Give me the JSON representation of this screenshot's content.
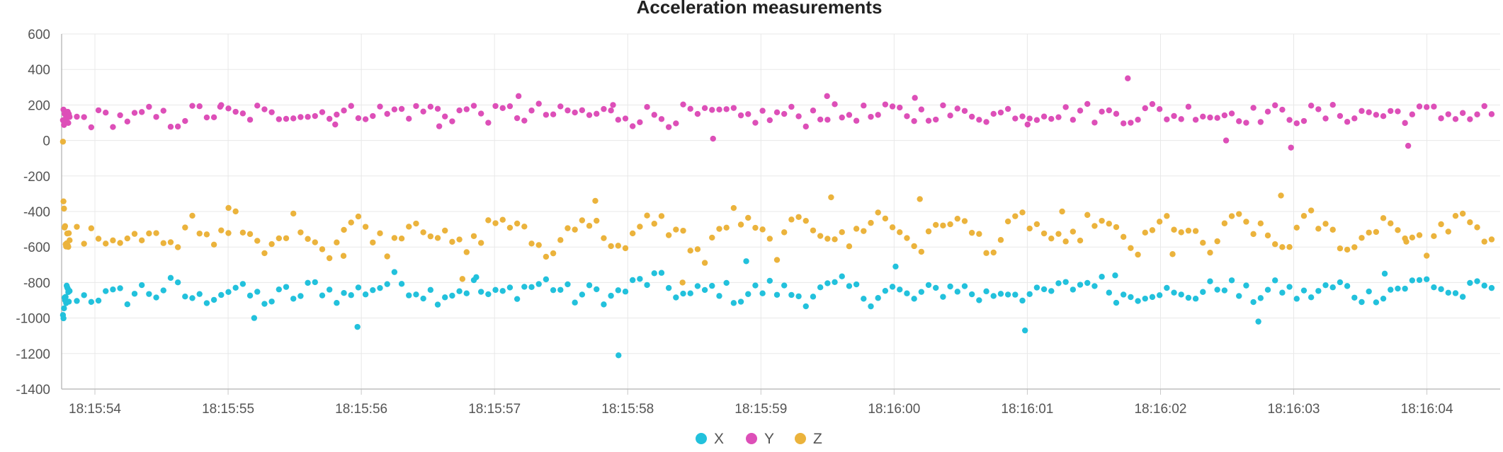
{
  "chart_data": {
    "type": "scatter",
    "title": "Acceleration measurements",
    "xlabel": "",
    "ylabel": "",
    "ylim": [
      -1400,
      600
    ],
    "y_ticks": [
      600,
      400,
      200,
      0,
      -200,
      -400,
      -600,
      -800,
      -1000,
      -1200,
      -1400
    ],
    "y_tick_labels": [
      "600",
      "400",
      "200",
      "0",
      "-200",
      "-400",
      "-600",
      "-800",
      "-1000",
      "-1200",
      "-1400"
    ],
    "xlim": [
      53.75,
      64.55
    ],
    "x_ticks": [
      54,
      55,
      56,
      57,
      58,
      59,
      60,
      61,
      62,
      63,
      64
    ],
    "x_tick_labels": [
      "18:15:54",
      "18:15:55",
      "18:15:56",
      "18:15:57",
      "18:15:58",
      "18:15:59",
      "18:16:00",
      "18:16:01",
      "18:16:02",
      "18:16:03",
      "18:16:04"
    ],
    "grid": true,
    "legend": "bottom-center",
    "series": [
      {
        "name": "X",
        "color": "#22c1dc",
        "base": [
          -1000,
          -980,
          -960,
          -940,
          -920,
          -900,
          -880,
          -860,
          -850,
          -870,
          -880,
          -890,
          -880,
          -870,
          -880,
          -880,
          -870,
          -880,
          -880,
          -870,
          -880,
          -860,
          -840,
          -850,
          -860,
          -830,
          -820,
          -840,
          -870,
          -880,
          -900,
          -880,
          -860,
          -850,
          -840,
          -830,
          -860,
          -870,
          -880,
          -890,
          -900,
          -880,
          -860,
          -870,
          -880,
          -840,
          -820,
          -830,
          -850,
          -870,
          -880,
          -860,
          -850,
          -840,
          -830,
          -820,
          -800,
          -790,
          -800,
          -820,
          -840,
          -850,
          -860,
          -870,
          -860,
          -850,
          -840,
          -830,
          -820,
          -850,
          -870,
          -880,
          -860,
          -850,
          -840,
          -830,
          -820,
          -810,
          -800,
          -820,
          -840,
          -860,
          -880,
          -870,
          -860,
          -850,
          -870,
          -890,
          -860,
          -840,
          -820,
          -800,
          -790,
          -780,
          -800,
          -830,
          -850,
          -870,
          -880,
          -860,
          -850,
          -840,
          -830,
          -850,
          -870,
          -880,
          -860,
          -850,
          -840,
          -830,
          -840,
          -850,
          -860,
          -870,
          -880,
          -860,
          -850,
          -840,
          -830,
          -820,
          -830,
          -850,
          -870,
          -880,
          -860,
          -850,
          -840,
          -860,
          -880,
          -890,
          -870,
          -860,
          -850,
          -840,
          -830,
          -820,
          -840,
          -860,
          -880,
          -870,
          -860,
          -850,
          -840,
          -850,
          -860,
          -870,
          -880,
          -860,
          -850,
          -840,
          -830,
          -820,
          -810,
          -800,
          -780,
          -810,
          -840,
          -860,
          -880,
          -870,
          -860,
          -850,
          -840,
          -830,
          -860,
          -880,
          -890,
          -870,
          -860,
          -850,
          -840,
          -820,
          -800,
          -830,
          -860,
          -870,
          -880,
          -860,
          -850,
          -840,
          -830,
          -850,
          -870,
          -880,
          -860,
          -850,
          -840,
          -830,
          -820,
          -840,
          -860,
          -870,
          -880,
          -860,
          -850,
          -840,
          -830,
          -820,
          -810,
          -800,
          -790,
          -810,
          -830,
          -850,
          -870,
          -860,
          -850,
          -840,
          -830,
          -820
        ],
        "extremes": [
          -1000,
          -1050,
          -770,
          -1210,
          -680,
          -710,
          -1070,
          -760,
          -1020,
          -750
        ]
      },
      {
        "name": "Y",
        "color": "#dd4fb8",
        "base": [
          150,
          130,
          110,
          100,
          95,
          100,
          105,
          110,
          115,
          118,
          120,
          118,
          122,
          120,
          125,
          120,
          125,
          130,
          128,
          125,
          130,
          120,
          135,
          140,
          130,
          125,
          110,
          120,
          140,
          150,
          160,
          155,
          150,
          160,
          150,
          140,
          130,
          150,
          160,
          140,
          130,
          150,
          160,
          170,
          160,
          150,
          140,
          160,
          170,
          165,
          155,
          150,
          160,
          170,
          165,
          160,
          150,
          160,
          170,
          165,
          160,
          170,
          175,
          165,
          155,
          150,
          160,
          170,
          165,
          160,
          150,
          140,
          150,
          160,
          155,
          145,
          150,
          160,
          155,
          150,
          140,
          150,
          160,
          150,
          140,
          150,
          155,
          145,
          140,
          150,
          130,
          140,
          150,
          145,
          140,
          130,
          140,
          150,
          145,
          140,
          130,
          140,
          150,
          140,
          130,
          125,
          130,
          140,
          135,
          130,
          140,
          150,
          145,
          140,
          130,
          150,
          160,
          155,
          150,
          140,
          150,
          160,
          150,
          140,
          130,
          150,
          160,
          155,
          150,
          140,
          150,
          160,
          170,
          160,
          150,
          140,
          150,
          160,
          155,
          150,
          140,
          150,
          160,
          170,
          160,
          150,
          160,
          170,
          165,
          155,
          150,
          160,
          170,
          160,
          150,
          140,
          150,
          160,
          150,
          140,
          150,
          160,
          170,
          160,
          150,
          140,
          150,
          160,
          170,
          160,
          150,
          140,
          150,
          160,
          155,
          150,
          140,
          150,
          160,
          150,
          140,
          150,
          145,
          140,
          150,
          145,
          140,
          150,
          160,
          150,
          140,
          150,
          160,
          150,
          140,
          150,
          160,
          150,
          140,
          150,
          160,
          150,
          140,
          150,
          160,
          150,
          140,
          150,
          160,
          150
        ],
        "extremes": [
          190,
          90,
          80,
          250,
          200,
          10,
          250,
          240,
          90,
          350,
          0,
          -40,
          -30
        ]
      },
      {
        "name": "Z",
        "color": "#ebb33c",
        "base": [
          -30,
          -320,
          -380,
          -450,
          -520,
          -560,
          -550,
          -540,
          -560,
          -555,
          -545,
          -550,
          -540,
          -530,
          -550,
          -545,
          -540,
          -550,
          -555,
          -545,
          -540,
          -550,
          -560,
          -550,
          -540,
          -600,
          -620,
          -630,
          -470,
          -450,
          -480,
          -540,
          -560,
          -500,
          -470,
          -450,
          -520,
          -560,
          -600,
          -630,
          -610,
          -560,
          -500,
          -460,
          -480,
          -500,
          -560,
          -600,
          -620,
          -560,
          -500,
          -470,
          -460,
          -490,
          -520,
          -560,
          -600,
          -560,
          -500,
          -470,
          -450,
          -470,
          -500,
          -530,
          -560,
          -580,
          -600,
          -620,
          -580,
          -530,
          -480,
          -460,
          -440,
          -470,
          -500,
          -530,
          -560,
          -600,
          -620,
          -650,
          -560,
          -500,
          -450,
          -430,
          -460,
          -490,
          -520,
          -560,
          -600,
          -640,
          -560,
          -500,
          -460,
          -430,
          -460,
          -490,
          -520,
          -540,
          -580,
          -620,
          -680,
          -590,
          -510,
          -460,
          -420,
          -450,
          -480,
          -510,
          -540,
          -580,
          -620,
          -560,
          -500,
          -460,
          -430,
          -470,
          -500,
          -520,
          -540,
          -560,
          -580,
          -520,
          -480,
          -440,
          -420,
          -450,
          -480,
          -510,
          -540,
          -570,
          -600,
          -560,
          -500,
          -460,
          -430,
          -460,
          -490,
          -520,
          -550,
          -580,
          -610,
          -560,
          -510,
          -470,
          -440,
          -460,
          -490,
          -520,
          -550,
          -580,
          -620,
          -560,
          -510,
          -470,
          -440,
          -470,
          -500,
          -530,
          -560,
          -590,
          -620,
          -570,
          -520,
          -480,
          -450,
          -470,
          -500,
          -530,
          -560,
          -590,
          -620,
          -560,
          -510,
          -470,
          -440,
          -460,
          -490,
          -520,
          -550,
          -580,
          -600,
          -560,
          -510,
          -470,
          -440,
          -470,
          -500,
          -530,
          -560,
          -590,
          -610,
          -560,
          -510,
          -470,
          -440,
          -460,
          -490,
          -520,
          -550,
          -580,
          -600,
          -560,
          -510,
          -470,
          -440,
          -460,
          -490,
          -520,
          -550,
          -540
        ],
        "extremes": [
          -380,
          -650,
          -780,
          -340,
          -800,
          -320,
          -330,
          -400,
          -640,
          -310,
          -570
        ]
      }
    ]
  }
}
